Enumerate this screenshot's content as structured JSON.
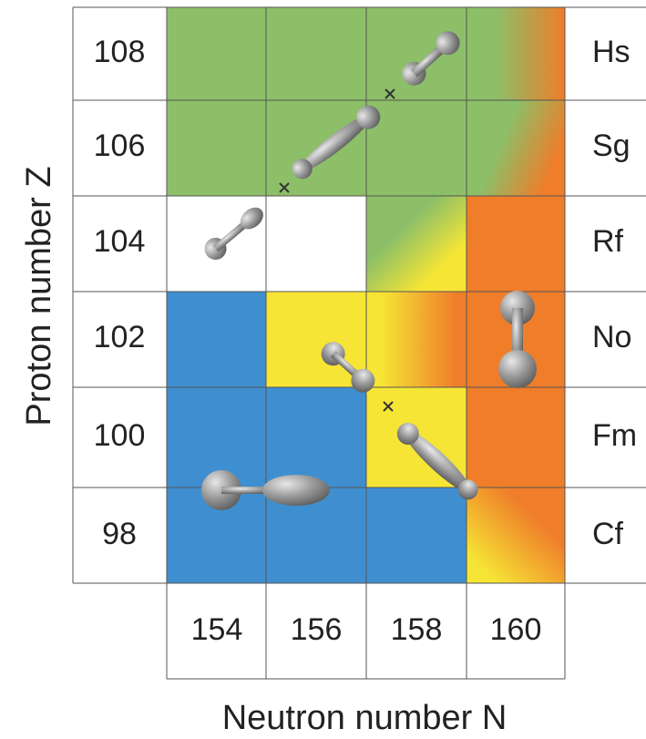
{
  "y_axis_label": "Proton number Z",
  "x_axis_label": "Neutron number N",
  "rows": [
    {
      "z": 108,
      "symbol": "Hs"
    },
    {
      "z": 106,
      "symbol": "Sg"
    },
    {
      "z": 104,
      "symbol": "Rf"
    },
    {
      "z": 102,
      "symbol": "No"
    },
    {
      "z": 100,
      "symbol": "Fm"
    },
    {
      "z": 98,
      "symbol": "Cf"
    }
  ],
  "columns": [
    154,
    156,
    158,
    160
  ]
}
